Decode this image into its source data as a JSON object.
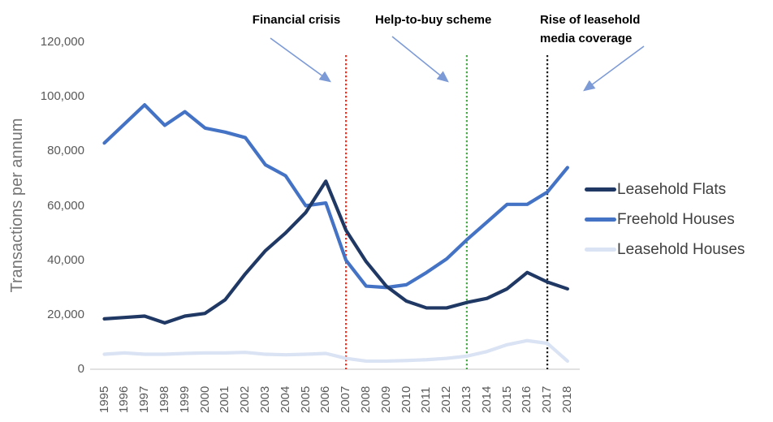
{
  "y_axis": {
    "title": "Transactions per annum",
    "ticks": [
      {
        "value": 0,
        "label": "0"
      },
      {
        "value": 20000,
        "label": "20,000"
      },
      {
        "value": 40000,
        "label": "40,000"
      },
      {
        "value": 60000,
        "label": "60,000"
      },
      {
        "value": 80000,
        "label": "80,000"
      },
      {
        "value": 100000,
        "label": "100,000"
      },
      {
        "value": 120000,
        "label": "120,000"
      }
    ]
  },
  "annotations": [
    {
      "text": "Financial crisis"
    },
    {
      "text": "Help-to-buy scheme"
    },
    {
      "text": "Rise of leasehold media coverage",
      "line1": "Rise of leasehold",
      "line2": "media coverage"
    }
  ],
  "legend": [
    {
      "label": "Leasehold Flats",
      "color": "#1F3864"
    },
    {
      "label": "Freehold Houses",
      "color": "#4472C4"
    },
    {
      "label": "Leasehold Houses",
      "color": "#DAE3F3"
    }
  ],
  "colors": {
    "axis_line": "#D9D9D9",
    "tick_text": "#595959",
    "arrow": "#7C9AD6",
    "event_financial_crisis": "#FF2A1A",
    "event_help_to_buy": "#46AA46",
    "event_media_coverage": "#1A1A1A"
  },
  "chart_data": {
    "type": "line",
    "title": "",
    "xlabel": "",
    "ylabel": "Transactions per annum",
    "ylim": [
      0,
      120000
    ],
    "y_tick_step": 20000,
    "grid": false,
    "legend_position": "right",
    "x": [
      "1995",
      "1996",
      "1997",
      "1998",
      "1999",
      "2000",
      "2001",
      "2002",
      "2003",
      "2004",
      "2005",
      "2006",
      "2007",
      "2008",
      "2009",
      "2010",
      "2011",
      "2012",
      "2013",
      "2014",
      "2015",
      "2016",
      "2017",
      "2018"
    ],
    "series": [
      {
        "name": "Leasehold Houses",
        "color": "#DAE3F3",
        "values": [
          5500,
          6000,
          5500,
          5500,
          5800,
          6000,
          6000,
          6200,
          5500,
          5300,
          5500,
          5800,
          4000,
          3000,
          3000,
          3200,
          3500,
          4000,
          4800,
          6500,
          9000,
          10500,
          9500,
          3000
        ]
      },
      {
        "name": "Freehold Houses",
        "color": "#4472C4",
        "values": [
          83000,
          90000,
          97000,
          89500,
          94500,
          88500,
          87000,
          85000,
          75000,
          71000,
          60000,
          61000,
          40000,
          30500,
          30000,
          31000,
          35500,
          40500,
          47500,
          54000,
          60500,
          60500,
          65000,
          74000
        ]
      },
      {
        "name": "Leasehold Flats",
        "color": "#1F3864",
        "values": [
          18500,
          19000,
          19500,
          17000,
          19500,
          20500,
          25500,
          35000,
          43500,
          50000,
          57500,
          69000,
          51000,
          39500,
          30500,
          25000,
          22500,
          22500,
          24500,
          26000,
          29500,
          35500,
          32000,
          29500
        ]
      }
    ],
    "event_lines": [
      {
        "year": "2007",
        "label": "Financial crisis",
        "color": "#FF2A1A"
      },
      {
        "year": "2013",
        "label": "Help-to-buy scheme",
        "color": "#46AA46"
      },
      {
        "year": "2017",
        "label": "Rise of leasehold media coverage",
        "color": "#1A1A1A"
      }
    ]
  }
}
